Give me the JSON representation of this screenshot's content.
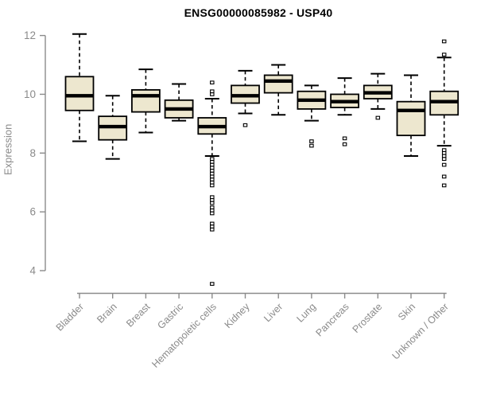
{
  "figure": {
    "title": "ENSG00000085982 - USP40",
    "y_axis_label": "Expression"
  },
  "colors": {
    "background": "#FFFFFF",
    "box_fill": "#EDE7CF",
    "box_border": "#000000",
    "median": "#000000",
    "whisker": "#000000",
    "axis": "#8B8B8B",
    "tick_label": "#8A8A8A",
    "title": "#000000"
  },
  "chart_data": {
    "type": "boxplot",
    "title": "ENSG00000085982 - USP40",
    "xlabel": "",
    "ylabel": "Expression",
    "ylim": [
      3.4,
      12.3
    ],
    "yticks": [
      4,
      6,
      8,
      10,
      12
    ],
    "grid": false,
    "legend": "none",
    "categories": [
      "Bladder",
      "Brain",
      "Breast",
      "Gastric",
      "Hematopoietic cells",
      "Kidney",
      "Liver",
      "Lung",
      "Pancreas",
      "Prostate",
      "Skin",
      "Unknown / Other"
    ],
    "series": [
      {
        "category": "Bladder",
        "whisker_low": 8.4,
        "q1": 9.45,
        "median": 9.95,
        "q3": 10.6,
        "whisker_high": 12.05,
        "outliers": []
      },
      {
        "category": "Brain",
        "whisker_low": 7.8,
        "q1": 8.45,
        "median": 8.9,
        "q3": 9.25,
        "whisker_high": 9.95,
        "outliers": []
      },
      {
        "category": "Breast",
        "whisker_low": 8.7,
        "q1": 9.4,
        "median": 9.95,
        "q3": 10.15,
        "whisker_high": 10.85,
        "outliers": []
      },
      {
        "category": "Gastric",
        "whisker_low": 9.1,
        "q1": 9.2,
        "median": 9.5,
        "q3": 9.8,
        "whisker_high": 10.35,
        "outliers": []
      },
      {
        "category": "Hematopoietic cells",
        "whisker_low": 7.9,
        "q1": 8.65,
        "median": 8.9,
        "q3": 9.2,
        "whisker_high": 9.85,
        "outliers": [
          10.4,
          10.1,
          10.0,
          7.8,
          7.7,
          7.6,
          7.5,
          7.4,
          7.3,
          7.2,
          7.1,
          7.0,
          6.9,
          6.5,
          6.4,
          6.3,
          6.15,
          6.05,
          5.95,
          5.6,
          5.5,
          5.4,
          3.55
        ]
      },
      {
        "category": "Kidney",
        "whisker_low": 9.35,
        "q1": 9.7,
        "median": 9.95,
        "q3": 10.3,
        "whisker_high": 10.8,
        "outliers": [
          8.95
        ]
      },
      {
        "category": "Liver",
        "whisker_low": 9.3,
        "q1": 10.05,
        "median": 10.45,
        "q3": 10.65,
        "whisker_high": 11.0,
        "outliers": []
      },
      {
        "category": "Lung",
        "whisker_low": 9.1,
        "q1": 9.5,
        "median": 9.8,
        "q3": 10.1,
        "whisker_high": 10.3,
        "outliers": [
          8.4,
          8.25
        ]
      },
      {
        "category": "Pancreas",
        "whisker_low": 9.3,
        "q1": 9.55,
        "median": 9.75,
        "q3": 10.0,
        "whisker_high": 10.55,
        "outliers": [
          8.5,
          8.3
        ]
      },
      {
        "category": "Prostate",
        "whisker_low": 9.5,
        "q1": 9.85,
        "median": 10.05,
        "q3": 10.3,
        "whisker_high": 10.7,
        "outliers": [
          9.2
        ]
      },
      {
        "category": "Skin",
        "whisker_low": 7.9,
        "q1": 8.6,
        "median": 9.45,
        "q3": 9.75,
        "whisker_high": 10.65,
        "outliers": []
      },
      {
        "category": "Unknown / Other",
        "whisker_low": 8.25,
        "q1": 9.3,
        "median": 9.75,
        "q3": 10.1,
        "whisker_high": 11.25,
        "outliers": [
          11.8,
          11.35,
          8.1,
          8.0,
          7.9,
          7.8,
          7.6,
          7.2,
          6.9
        ]
      }
    ]
  }
}
